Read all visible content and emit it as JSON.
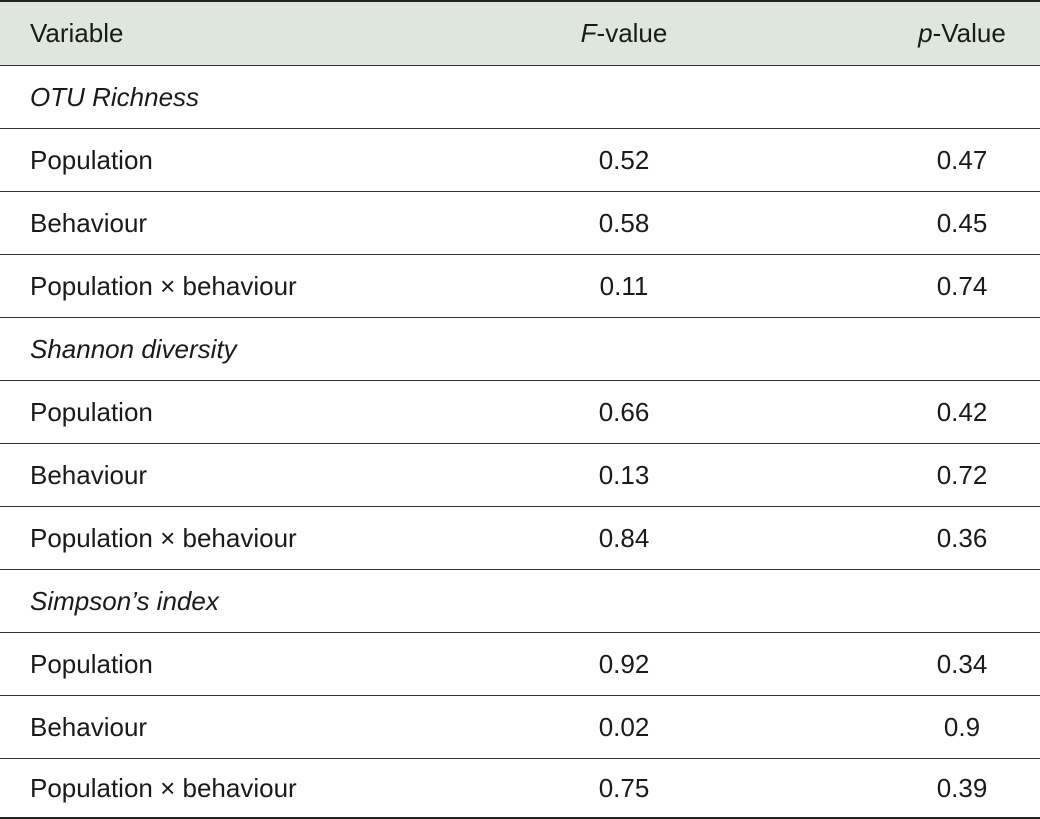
{
  "header": {
    "variable": "Variable",
    "f_italic": "F",
    "f_rest": "-value",
    "p_italic": "p",
    "p_rest": "-Value"
  },
  "rows": [
    {
      "type": "section",
      "label": "OTU Richness"
    },
    {
      "type": "data",
      "variable": "Population",
      "f": "0.52",
      "p": "0.47"
    },
    {
      "type": "data",
      "variable": "Behaviour",
      "f": "0.58",
      "p": "0.45"
    },
    {
      "type": "data",
      "variable": "Population × behaviour",
      "f": "0.11",
      "p": "0.74"
    },
    {
      "type": "section",
      "label": "Shannon diversity"
    },
    {
      "type": "data",
      "variable": "Population",
      "f": "0.66",
      "p": "0.42"
    },
    {
      "type": "data",
      "variable": "Behaviour",
      "f": "0.13",
      "p": "0.72"
    },
    {
      "type": "data",
      "variable": "Population × behaviour",
      "f": "0.84",
      "p": "0.36"
    },
    {
      "type": "section",
      "label": "Simpson’s index"
    },
    {
      "type": "data",
      "variable": "Population",
      "f": "0.92",
      "p": "0.34"
    },
    {
      "type": "data",
      "variable": "Behaviour",
      "f": "0.02",
      "p": "0.9"
    },
    {
      "type": "data",
      "variable": "Population × behaviour",
      "f": "0.75",
      "p": "0.39"
    }
  ],
  "colors": {
    "header_background": "#dfe7dc",
    "rule": "#333333"
  }
}
